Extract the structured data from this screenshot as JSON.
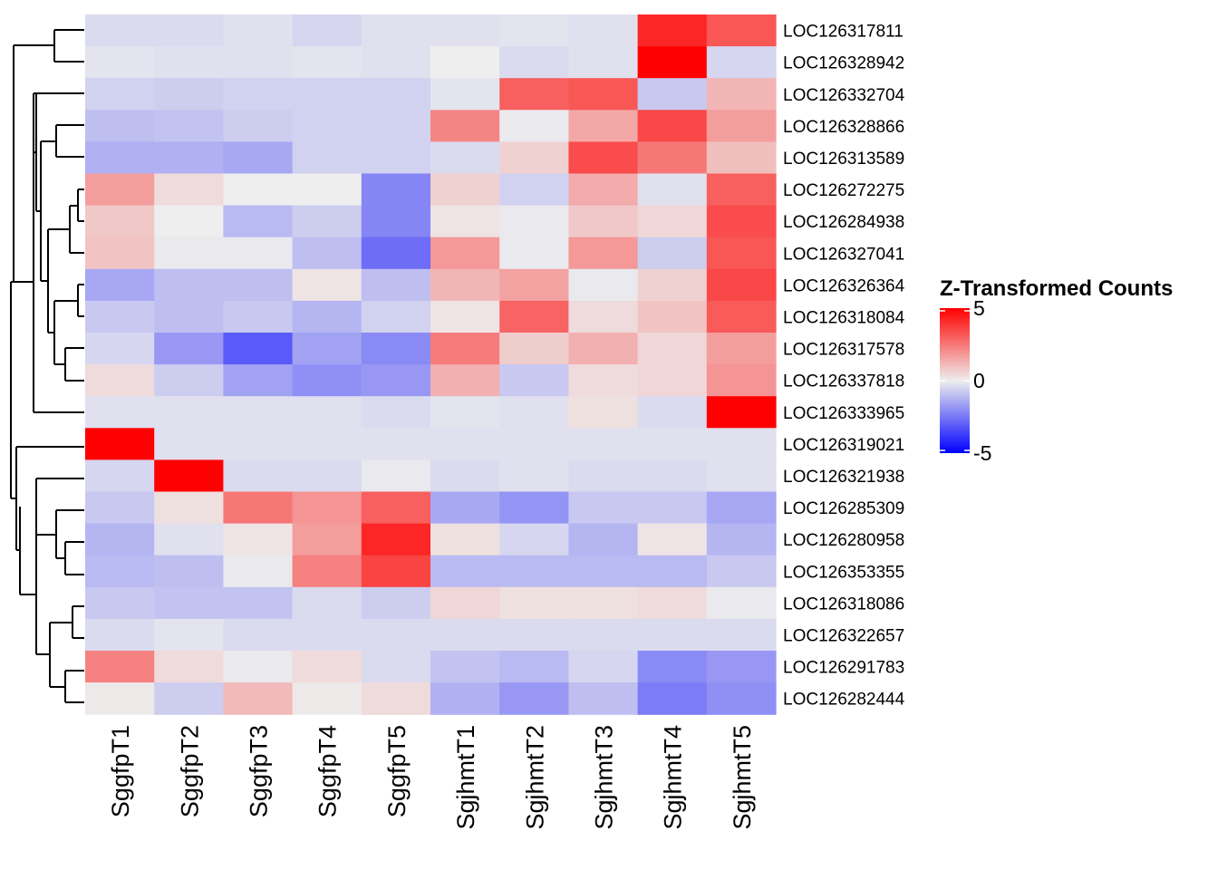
{
  "chart_data": {
    "type": "heatmap",
    "title": "",
    "columns": [
      "SggfpT1",
      "SggfpT2",
      "SggfpT3",
      "SggfpT4",
      "SggfpT5",
      "SgjhmtT1",
      "SgjhmtT2",
      "SgjhmtT3",
      "SgjhmtT4",
      "SgjhmtT5"
    ],
    "rows": [
      "LOC126317811",
      "LOC126328942",
      "LOC126332704",
      "LOC126328866",
      "LOC126313589",
      "LOC126272275",
      "LOC126284938",
      "LOC126327041",
      "LOC126326364",
      "LOC126318084",
      "LOC126317578",
      "LOC126337818",
      "LOC126333965",
      "LOC126319021",
      "LOC126321938",
      "LOC126285309",
      "LOC126280958",
      "LOC126353355",
      "LOC126318086",
      "LOC126322657",
      "LOC126291783",
      "LOC126282444"
    ],
    "values": [
      [
        -0.4,
        -0.4,
        -0.3,
        -0.5,
        -0.3,
        -0.3,
        -0.2,
        -0.3,
        4.2,
        3.2
      ],
      [
        -0.2,
        -0.3,
        -0.3,
        -0.2,
        -0.3,
        0.0,
        -0.4,
        -0.3,
        5.0,
        -0.5
      ],
      [
        -0.6,
        -0.7,
        -0.6,
        -0.6,
        -0.6,
        -0.2,
        3.0,
        3.2,
        -0.8,
        1.2
      ],
      [
        -1.0,
        -0.9,
        -0.7,
        -0.6,
        -0.6,
        2.2,
        -0.1,
        1.5,
        3.5,
        1.7
      ],
      [
        -1.3,
        -1.3,
        -1.5,
        -0.6,
        -0.6,
        -0.4,
        0.6,
        3.4,
        2.5,
        1.0
      ],
      [
        1.7,
        0.4,
        0.0,
        0.0,
        -2.2,
        0.6,
        -0.6,
        1.4,
        -0.3,
        3.0
      ],
      [
        0.8,
        0.0,
        -1.1,
        -0.7,
        -2.2,
        0.2,
        -0.1,
        0.8,
        0.5,
        3.4
      ],
      [
        0.9,
        -0.1,
        -0.1,
        -1.0,
        -2.7,
        1.8,
        -0.1,
        1.8,
        -0.7,
        3.2
      ],
      [
        -1.5,
        -1.0,
        -1.0,
        0.2,
        -1.0,
        1.2,
        1.6,
        -0.1,
        0.6,
        3.5
      ],
      [
        -0.8,
        -1.0,
        -0.8,
        -1.2,
        -0.6,
        0.2,
        2.9,
        0.4,
        0.9,
        3.1
      ],
      [
        -0.5,
        -1.8,
        -3.1,
        -1.6,
        -2.1,
        2.4,
        0.7,
        1.3,
        0.5,
        1.7
      ],
      [
        0.4,
        -0.7,
        -1.6,
        -2.0,
        -1.8,
        1.3,
        -0.8,
        0.4,
        0.5,
        1.9
      ],
      [
        -0.3,
        -0.3,
        -0.3,
        -0.3,
        -0.4,
        -0.2,
        -0.3,
        0.3,
        -0.4,
        5.0
      ],
      [
        5.0,
        -0.3,
        -0.3,
        -0.3,
        -0.3,
        -0.3,
        -0.3,
        -0.3,
        -0.3,
        -0.3
      ],
      [
        -0.5,
        5.0,
        -0.4,
        -0.4,
        -0.1,
        -0.4,
        -0.3,
        -0.4,
        -0.4,
        -0.3
      ],
      [
        -0.8,
        0.3,
        2.5,
        1.9,
        3.0,
        -1.5,
        -1.9,
        -0.8,
        -0.8,
        -1.5
      ],
      [
        -1.2,
        -0.3,
        0.2,
        1.7,
        4.2,
        0.3,
        -0.5,
        -1.2,
        0.2,
        -1.2
      ],
      [
        -1.1,
        -1.0,
        -0.1,
        2.3,
        3.6,
        -1.1,
        -1.1,
        -1.1,
        -1.1,
        -0.8
      ],
      [
        -0.8,
        -0.9,
        -0.9,
        -0.4,
        -0.7,
        0.5,
        0.3,
        0.3,
        0.4,
        -0.1
      ],
      [
        -0.4,
        -0.2,
        -0.4,
        -0.4,
        -0.4,
        -0.4,
        -0.4,
        -0.4,
        -0.4,
        -0.4
      ],
      [
        2.3,
        0.4,
        -0.1,
        0.4,
        -0.4,
        -0.9,
        -1.1,
        -0.5,
        -2.1,
        -1.8
      ],
      [
        0.1,
        -0.7,
        1.1,
        0.1,
        0.4,
        -1.3,
        -1.8,
        -1.0,
        -2.4,
        -2.0
      ]
    ],
    "color_scale": {
      "min": -5,
      "mid": 0,
      "max": 5,
      "low": "#0000ff",
      "mid_color": "#eeeeee",
      "high": "#ff0000"
    },
    "legend": {
      "title": "Z-Transformed Counts",
      "ticks": [
        "5",
        "0",
        "-5"
      ],
      "tick_values": [
        5,
        0,
        -5
      ],
      "position": "right"
    },
    "row_dendrogram": true,
    "column_dendrogram": false
  }
}
